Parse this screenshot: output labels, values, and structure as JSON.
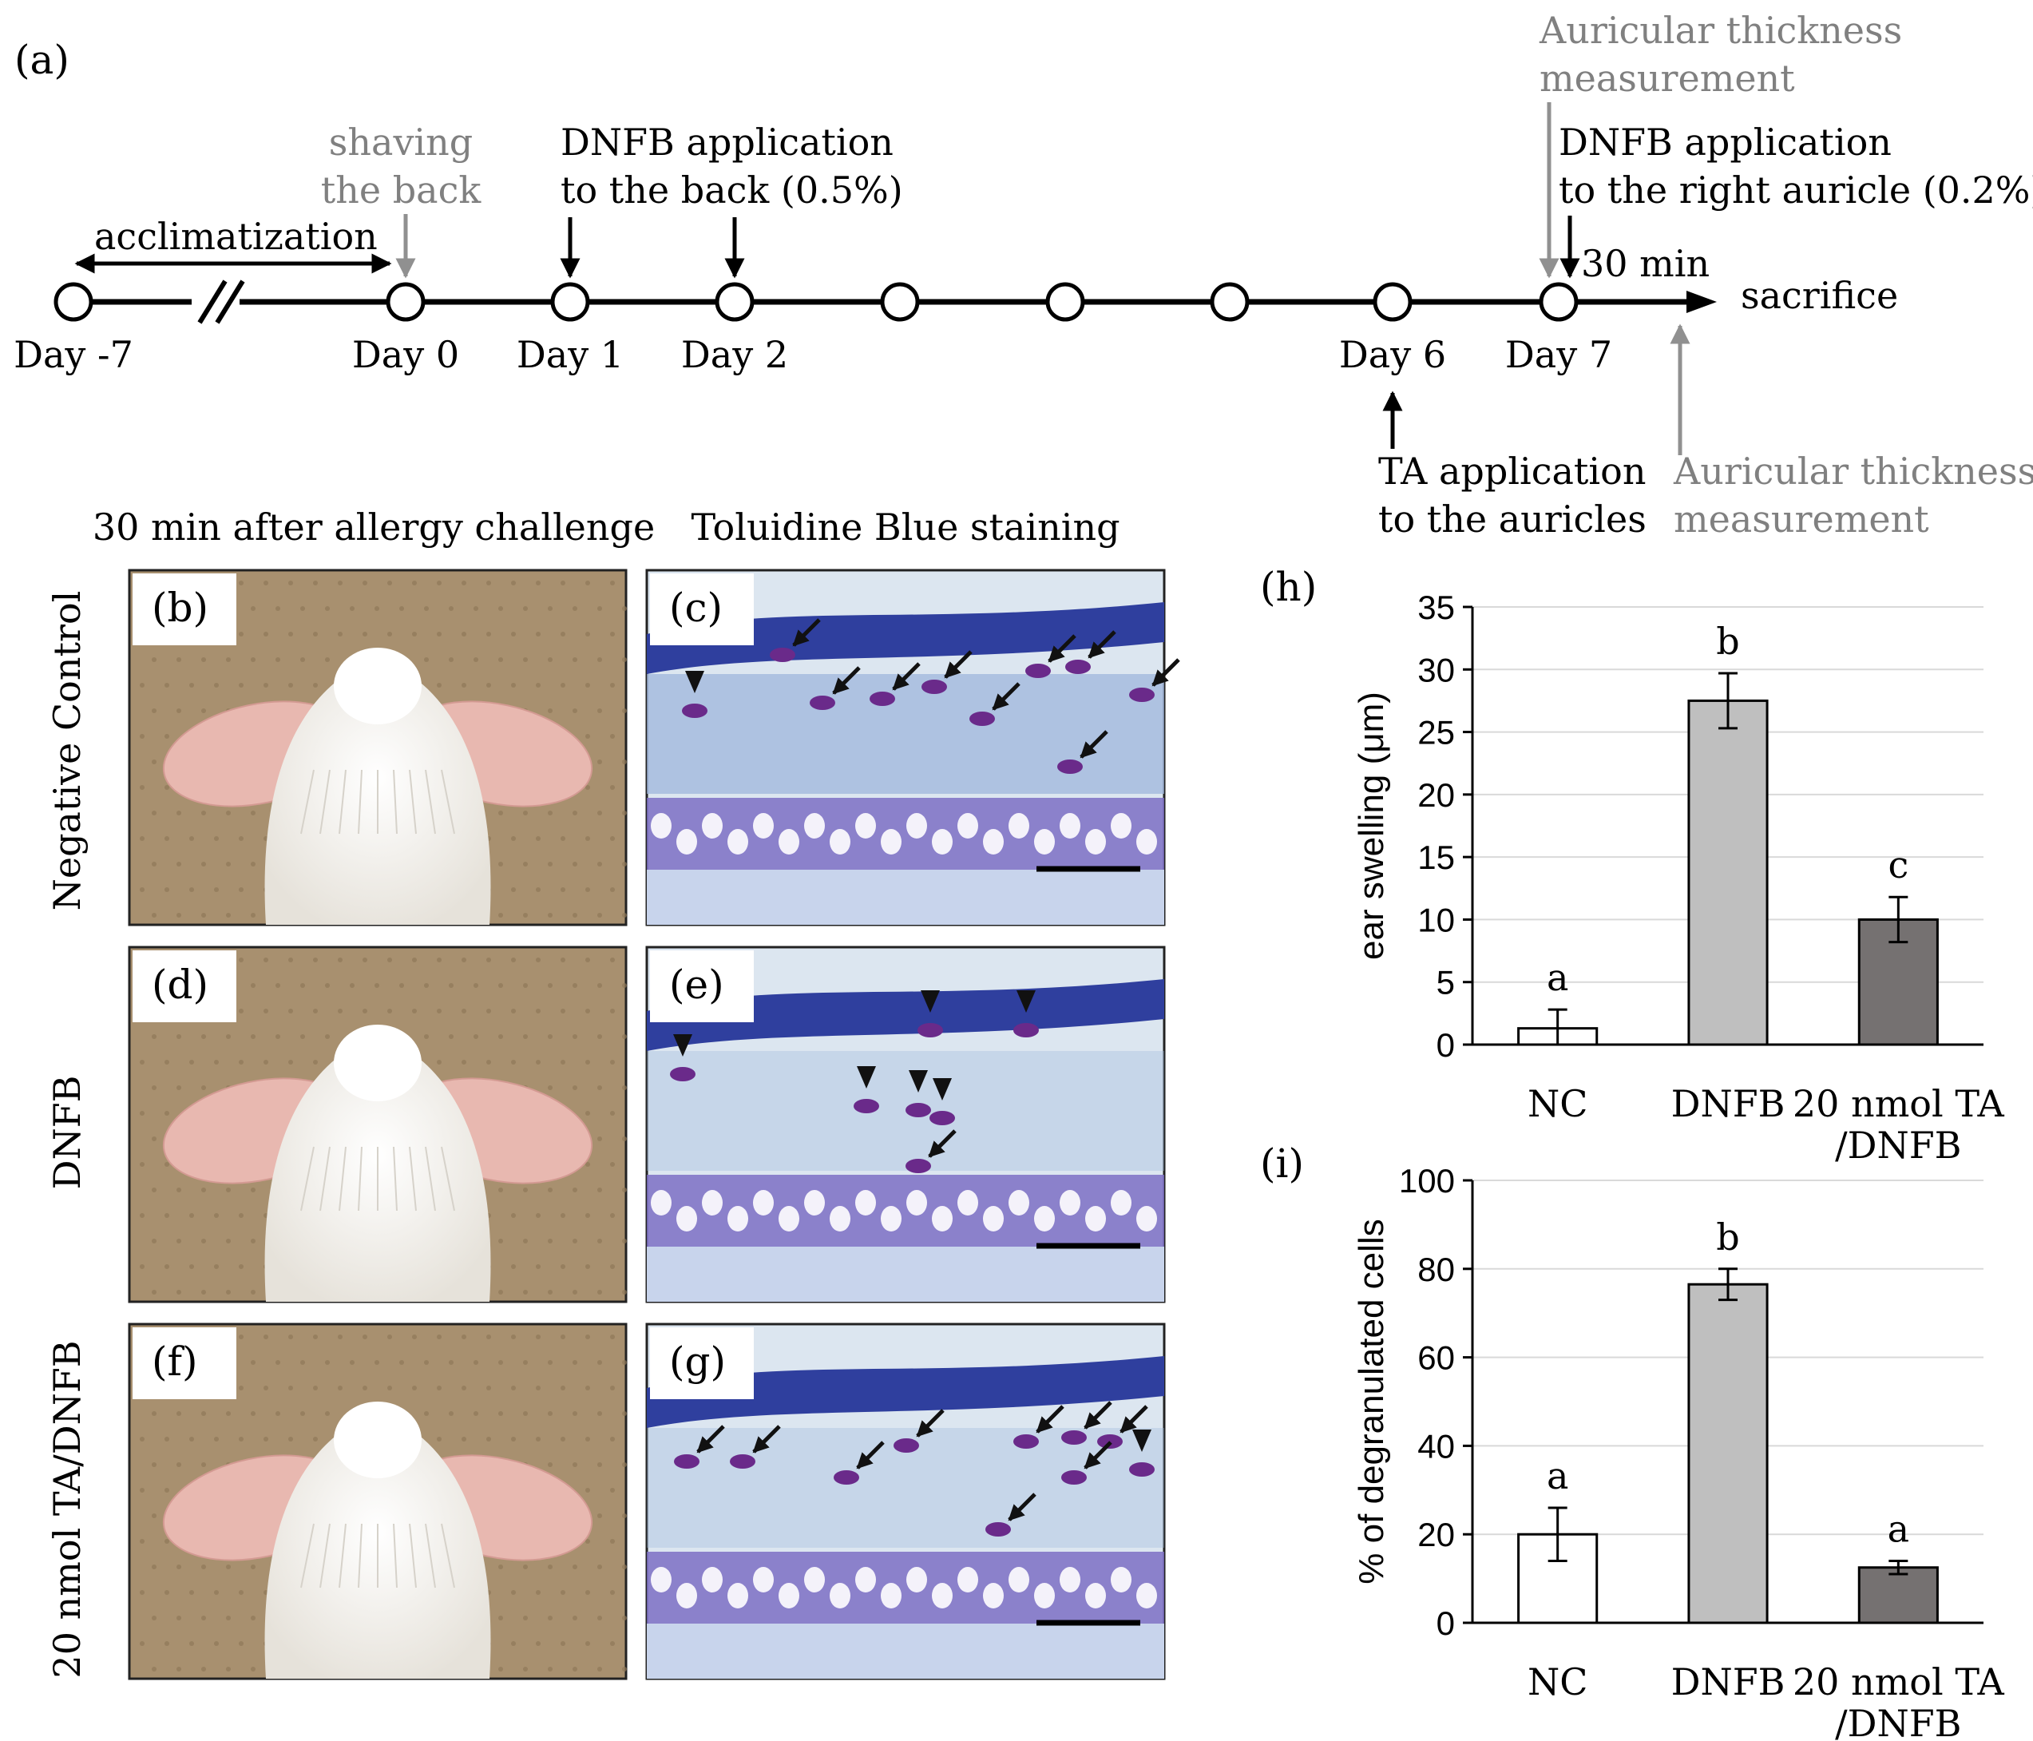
{
  "timeline": {
    "panel_label": "(a)",
    "days": [
      "Day -7",
      "Day 0",
      "Day 1",
      "Day 2",
      "",
      "",
      "",
      "Day 6",
      "Day 7"
    ],
    "acclimatization": "acclimatization",
    "shaving": [
      "shaving",
      "the back"
    ],
    "dnfb_back": [
      "DNFB application",
      "to the back (0.5%)"
    ],
    "ear_thickness_before": [
      "Auricular thickness",
      "measurement"
    ],
    "dnfb_auricle": [
      "DNFB application",
      "to the right auricle (0.2%)"
    ],
    "interval": "30 min",
    "sacrifice": "sacrifice",
    "ta_application": [
      "TA application",
      "to the auricles"
    ],
    "ear_thickness_after": [
      "Auricular thickness",
      "measurement"
    ]
  },
  "images": {
    "photo_column_title": "30 min after allergy challenge",
    "stain_column_title": "Toluidine Blue staining",
    "row_labels": [
      "Negative Control",
      "DNFB",
      "20 nmol TA/DNFB"
    ],
    "photo_labels": [
      "(b)",
      "(d)",
      "(f)"
    ],
    "stain_labels": [
      "(c)",
      "(e)",
      "(g)"
    ],
    "colors": {
      "background_mat": "#a8906f",
      "fur": "#f4f2ee",
      "ear": "#e8b8b0",
      "tissue_bg": "#dce6f0",
      "epidermis": "#2f3f9e",
      "cartilage": "#7d6fc4",
      "mast_cell": "#6a2a8a"
    }
  },
  "chart_data": [
    {
      "type": "bar",
      "panel_label": "(h)",
      "categories": [
        "NC",
        [
          "DNFB"
        ],
        [
          "20 nmol TA",
          "/DNFB"
        ]
      ],
      "category_labels": [
        [
          "NC"
        ],
        [
          "DNFB"
        ],
        [
          "20 nmol TA",
          "/DNFB"
        ]
      ],
      "values": [
        1.3,
        27.5,
        10.0
      ],
      "errors": [
        1.5,
        2.2,
        1.8
      ],
      "significance": [
        "a",
        "b",
        "c"
      ],
      "ylabel": "ear swelling (μm)",
      "ylim": [
        0,
        35
      ],
      "yticks": [
        0,
        5,
        10,
        15,
        20,
        25,
        30,
        35
      ],
      "bar_colors": [
        "#ffffff",
        "#bfbfbf",
        "#757171"
      ],
      "grid": true
    },
    {
      "type": "bar",
      "panel_label": "(i)",
      "category_labels": [
        [
          "NC"
        ],
        [
          "DNFB"
        ],
        [
          "20 nmol TA",
          "/DNFB"
        ]
      ],
      "values": [
        20.0,
        76.5,
        12.5
      ],
      "errors": [
        6.0,
        3.5,
        1.5
      ],
      "significance": [
        "a",
        "b",
        "a"
      ],
      "ylabel": "% of degranulated cells",
      "ylim": [
        0,
        100
      ],
      "yticks": [
        0,
        20,
        40,
        60,
        80,
        100
      ],
      "bar_colors": [
        "#ffffff",
        "#bfbfbf",
        "#757171"
      ],
      "grid": true
    }
  ]
}
